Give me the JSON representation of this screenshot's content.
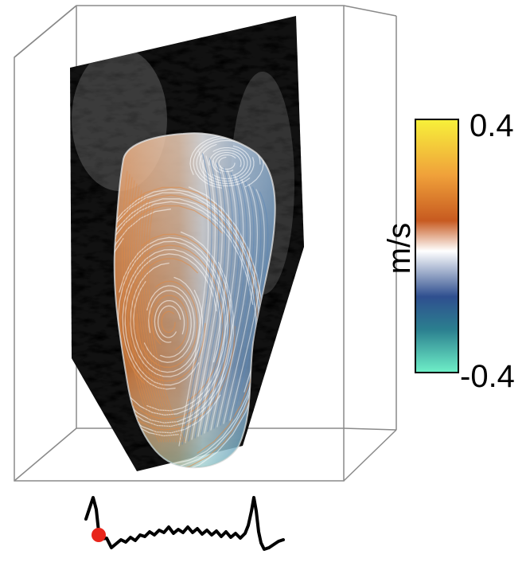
{
  "colorbar": {
    "max_label": "0.4",
    "min_label": "-0.4",
    "unit": "m/s",
    "max_value": 0.4,
    "min_value": -0.4,
    "stops": [
      "#f7f13a",
      "#f0a13a",
      "#c75a20",
      "#ffffff",
      "#2f4f8f",
      "#2b7f8f",
      "#6ff0c8"
    ]
  },
  "flow": {
    "positive_color": "#e08a45",
    "negative_color": "#5a86b8",
    "streamline_color": "#ffffff"
  },
  "ecg": {
    "trace_color": "#000000",
    "marker_color": "#e8251b",
    "marker_phase": "early-systole"
  },
  "icons": [
    "bounding-box",
    "echo-slice",
    "ventricle-mesh",
    "ecg-trace",
    "time-marker"
  ]
}
